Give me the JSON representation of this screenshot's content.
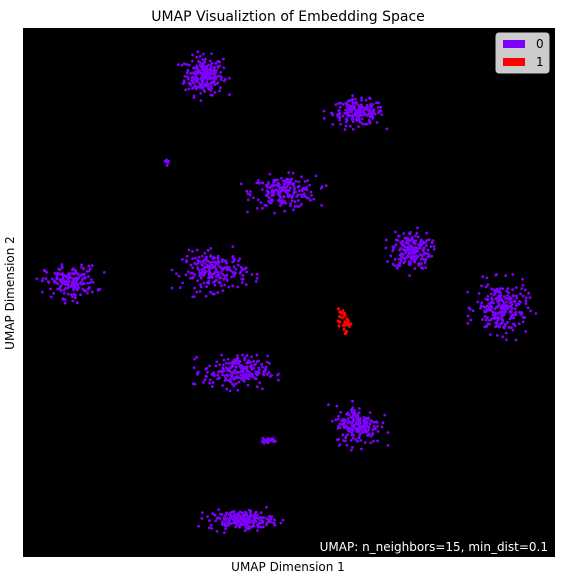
{
  "chart_data": {
    "type": "scatter",
    "title": "UMAP Visualiztion of Embedding Space",
    "xlabel": "UMAP Dimension 1",
    "ylabel": "UMAP Dimension 2",
    "annotation": "UMAP: n_neighbors=15, min_dist=0.1",
    "background": "#000000",
    "grid": false,
    "legend_position": "top-right",
    "legend": [
      {
        "label": "0",
        "color": "#7f00ff"
      },
      {
        "label": "1",
        "color": "#ff0000"
      }
    ],
    "series": [
      {
        "name": "0",
        "color": "#7f00ff",
        "clusters": [
          {
            "cx": 0.34,
            "cy": 0.91,
            "rx": 0.03,
            "ry": 0.03,
            "n": 240
          },
          {
            "cx": 0.63,
            "cy": 0.84,
            "rx": 0.04,
            "ry": 0.02,
            "n": 180
          },
          {
            "cx": 0.27,
            "cy": 0.75,
            "rx": 0.005,
            "ry": 0.01,
            "n": 8
          },
          {
            "cx": 0.49,
            "cy": 0.69,
            "rx": 0.05,
            "ry": 0.025,
            "n": 200
          },
          {
            "cx": 0.73,
            "cy": 0.58,
            "rx": 0.03,
            "ry": 0.03,
            "n": 200
          },
          {
            "cx": 0.09,
            "cy": 0.52,
            "rx": 0.04,
            "ry": 0.025,
            "n": 180
          },
          {
            "cx": 0.36,
            "cy": 0.54,
            "rx": 0.05,
            "ry": 0.03,
            "n": 220
          },
          {
            "cx": 0.9,
            "cy": 0.47,
            "rx": 0.04,
            "ry": 0.04,
            "n": 240
          },
          {
            "cx": 0.4,
            "cy": 0.35,
            "rx": 0.05,
            "ry": 0.025,
            "n": 220
          },
          {
            "cx": 0.63,
            "cy": 0.25,
            "rx": 0.035,
            "ry": 0.03,
            "n": 200
          },
          {
            "cx": 0.46,
            "cy": 0.22,
            "rx": 0.015,
            "ry": 0.004,
            "n": 20
          },
          {
            "cx": 0.41,
            "cy": 0.07,
            "rx": 0.05,
            "ry": 0.015,
            "n": 200
          }
        ]
      },
      {
        "name": "1",
        "color": "#ff0000",
        "clusters": [
          {
            "cx": 0.605,
            "cy": 0.445,
            "rx": 0.01,
            "ry": 0.015,
            "n": 30
          }
        ]
      }
    ]
  }
}
